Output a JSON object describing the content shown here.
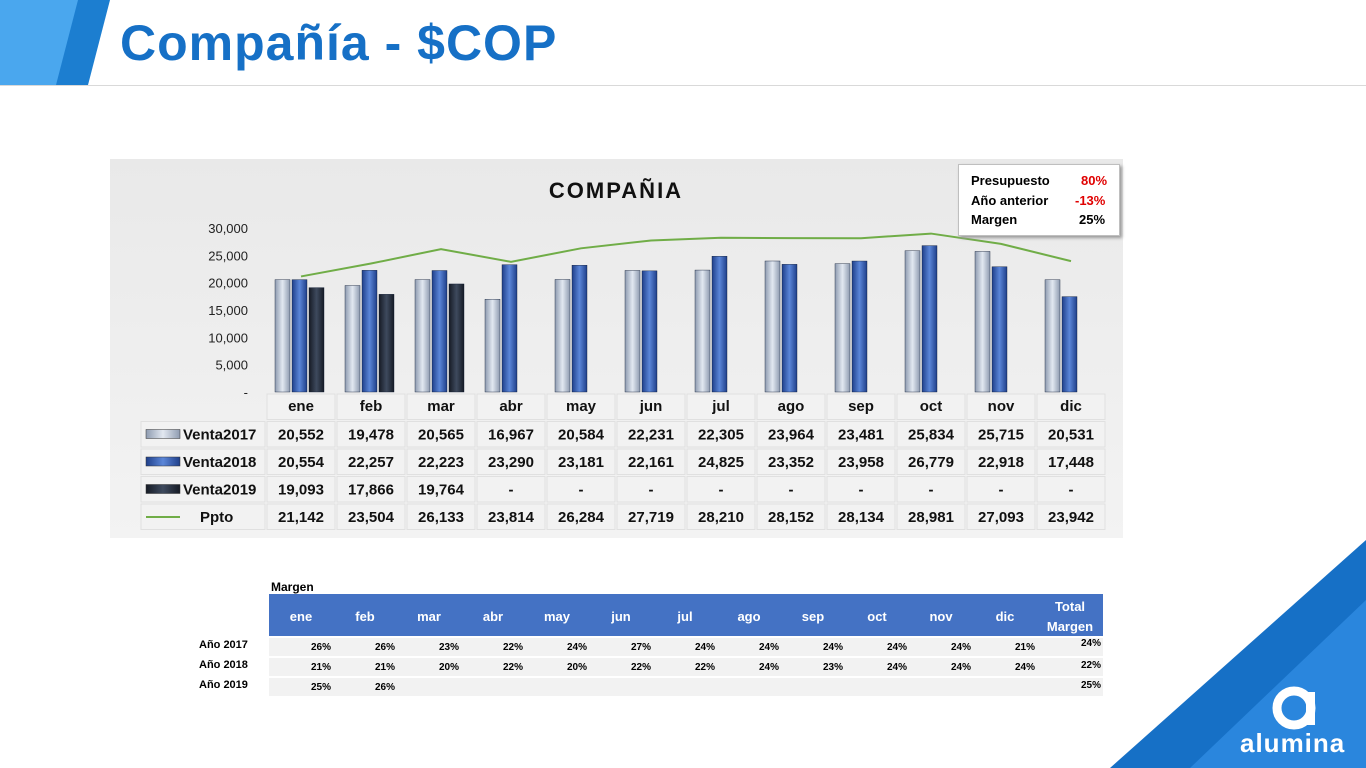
{
  "page": {
    "title": "Compañía - $COP",
    "logo_text": "alumina"
  },
  "kpi": [
    {
      "label": "Presupuesto",
      "value": "80%",
      "color": "#e00000"
    },
    {
      "label": "Año anterior",
      "value": "-13%",
      "color": "#e00000"
    },
    {
      "label": "Margen",
      "value": "25%",
      "color": "#000000"
    }
  ],
  "chart_data": {
    "type": "bar",
    "title": "COMPAÑIA",
    "categories": [
      "ene",
      "feb",
      "mar",
      "abr",
      "may",
      "jun",
      "jul",
      "ago",
      "sep",
      "oct",
      "nov",
      "dic"
    ],
    "ylim": [
      0,
      30000
    ],
    "yticks": [
      "-",
      "5,000",
      "10,000",
      "15,000",
      "20,000",
      "25,000",
      "30,000"
    ],
    "series": [
      {
        "name": "Venta2017",
        "kind": "bar",
        "color": "#b7c3d6",
        "values": [
          20552,
          19478,
          20565,
          16967,
          20584,
          22231,
          22305,
          23964,
          23481,
          25834,
          25715,
          20531
        ],
        "labels": [
          "20,552",
          "19,478",
          "20,565",
          "16,967",
          "20,584",
          "22,231",
          "22,305",
          "23,964",
          "23,481",
          "25,834",
          "25,715",
          "20,531"
        ]
      },
      {
        "name": "Venta2018",
        "kind": "bar",
        "color": "#3a66c0",
        "values": [
          20554,
          22257,
          22223,
          23290,
          23181,
          22161,
          24825,
          23352,
          23958,
          26779,
          22918,
          17448
        ],
        "labels": [
          "20,554",
          "22,257",
          "22,223",
          "23,290",
          "23,181",
          "22,161",
          "24,825",
          "23,352",
          "23,958",
          "26,779",
          "22,918",
          "17,448"
        ]
      },
      {
        "name": "Venta2019",
        "kind": "bar",
        "color": "#2b3444",
        "values": [
          19093,
          17866,
          19764,
          null,
          null,
          null,
          null,
          null,
          null,
          null,
          null,
          null
        ],
        "labels": [
          "19,093",
          "17,866",
          "19,764",
          "-",
          "-",
          "-",
          "-",
          "-",
          "-",
          "-",
          "-",
          "-"
        ]
      },
      {
        "name": "Ppto",
        "kind": "line",
        "color": "#70ad47",
        "values": [
          21142,
          23504,
          26133,
          23814,
          26284,
          27719,
          28210,
          28152,
          28134,
          28981,
          27093,
          23942
        ],
        "labels": [
          "21,142",
          "23,504",
          "26,133",
          "23,814",
          "26,284",
          "27,719",
          "28,210",
          "28,152",
          "28,134",
          "28,981",
          "27,093",
          "23,942"
        ]
      }
    ]
  },
  "margin_table": {
    "title": "Margen",
    "months": [
      "ene",
      "feb",
      "mar",
      "abr",
      "may",
      "jun",
      "jul",
      "ago",
      "sep",
      "oct",
      "nov",
      "dic"
    ],
    "total_header": [
      "Total",
      "Margen"
    ],
    "rows": [
      {
        "label": "Año 2017",
        "values": [
          "26%",
          "26%",
          "23%",
          "22%",
          "24%",
          "27%",
          "24%",
          "24%",
          "24%",
          "24%",
          "24%",
          "21%"
        ],
        "total": "24%"
      },
      {
        "label": "Año 2018",
        "values": [
          "21%",
          "21%",
          "20%",
          "22%",
          "20%",
          "22%",
          "22%",
          "24%",
          "23%",
          "24%",
          "24%",
          "24%"
        ],
        "total": "22%"
      },
      {
        "label": "Año 2019",
        "values": [
          "25%",
          "26%",
          "",
          "",
          "",
          "",
          "",
          "",
          "",
          "",
          "",
          ""
        ],
        "total": "25%"
      }
    ]
  }
}
